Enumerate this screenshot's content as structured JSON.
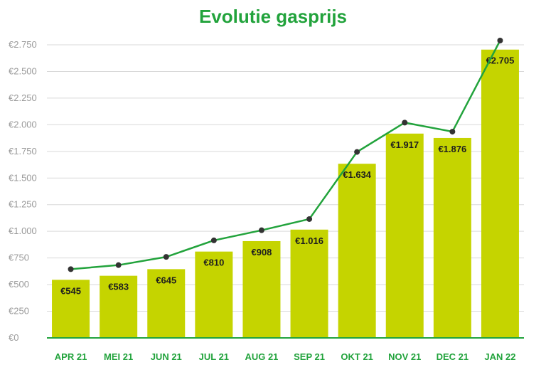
{
  "chart_data": {
    "type": "bar",
    "title": "Evolutie gasprijs",
    "categories": [
      "APR 21",
      "MEI 21",
      "JUN 21",
      "JUL 21",
      "AUG 21",
      "SEP 21",
      "OKT 21",
      "NOV 21",
      "DEC 21",
      "JAN 22"
    ],
    "series": [
      {
        "type": "bar",
        "values": [
          545,
          583,
          645,
          810,
          908,
          1016,
          1634,
          1917,
          1876,
          2705
        ]
      },
      {
        "type": "line",
        "values": [
          645,
          683,
          760,
          915,
          1010,
          1115,
          1745,
          2020,
          1935,
          2790
        ]
      }
    ],
    "data_labels": [
      "€545",
      "€583",
      "€645",
      "€810",
      "€908",
      "€1.016",
      "€1.634",
      "€1.917",
      "€1.876",
      "€2.705"
    ],
    "yticks": [
      0,
      250,
      500,
      750,
      1000,
      1250,
      1500,
      1750,
      2000,
      2250,
      2500,
      2750
    ],
    "ytick_labels": [
      "€0",
      "€250",
      "€500",
      "€750",
      "€1.000",
      "€1.250",
      "€1.500",
      "€1.750",
      "€2.000",
      "€2.250",
      "€2.500",
      "€2.750"
    ],
    "ylim": [
      0,
      2750
    ],
    "grid": true,
    "legend": "none",
    "colors": {
      "bar": "#c5d400",
      "line": "#22a33c",
      "marker": "#333333",
      "title": "#22a33c",
      "axis_labels": "#22a33c",
      "grid": "#d9d9d9",
      "tick_text": "#9a9a9a"
    }
  }
}
